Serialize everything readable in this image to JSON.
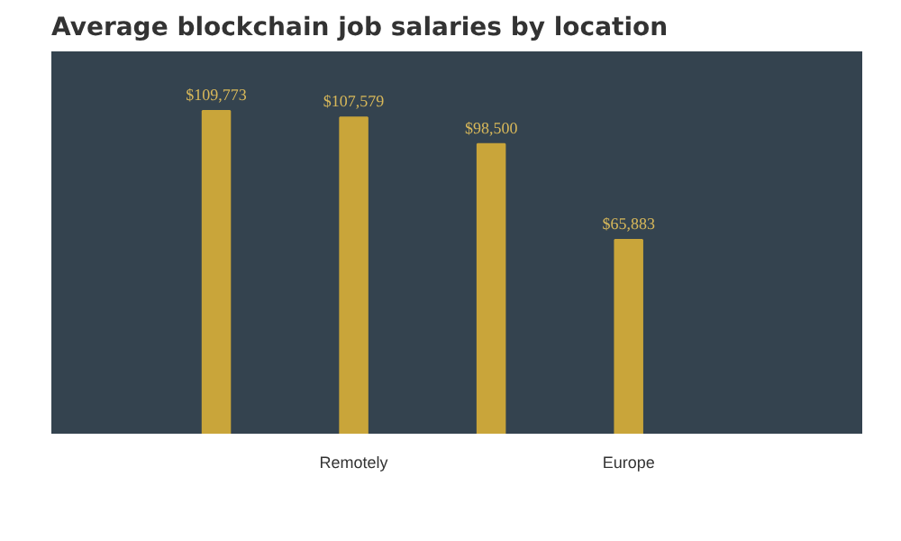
{
  "chart_data": {
    "type": "bar",
    "title": "Average blockchain job salaries by location",
    "categories": [
      null,
      "Remotely",
      null,
      "Europe"
    ],
    "values": [
      109773,
      107579,
      98500,
      65883
    ],
    "value_labels": [
      "$109,773",
      "$107,579",
      "$98,500",
      "$65,883"
    ],
    "color": "#c9a53a",
    "ylim": [
      0,
      130000
    ],
    "grid": false,
    "tick_labels": "x"
  }
}
